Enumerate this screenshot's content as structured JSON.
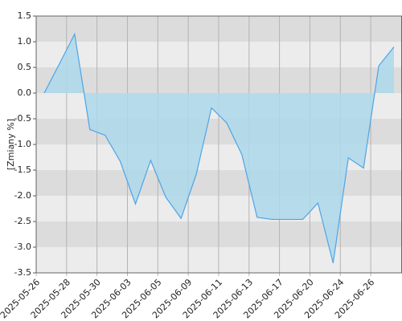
{
  "chart_data": {
    "type": "area",
    "y_label": "[Zmiany %]",
    "categories": [
      "2025-05-26",
      null,
      "2025-05-28",
      null,
      "2025-05-30",
      null,
      "2025-06-03",
      null,
      "2025-06-05",
      null,
      "2025-06-09",
      null,
      "2025-06-11",
      null,
      "2025-06-13",
      null,
      "2025-06-17",
      null,
      "2025-06-20",
      null,
      "2025-06-24",
      null,
      "2025-06-26",
      null
    ],
    "values": [
      0.0,
      0.57,
      1.15,
      -0.71,
      -0.82,
      -1.33,
      -2.16,
      -1.31,
      -2.03,
      -2.44,
      -1.58,
      -0.29,
      -0.58,
      -1.2,
      -2.42,
      -2.46,
      -2.46,
      -2.46,
      -2.14,
      -3.31,
      -1.26,
      -1.46,
      0.53,
      0.9
    ],
    "color": "#4ea4e6",
    "fill": "#add8eb",
    "ylim": [
      -3.5,
      1.5
    ],
    "yticks": [
      1.5,
      {
        "value": 1,
        "label": "1.0"
      },
      0.5,
      {
        "value": 0,
        "label": "0.0"
      },
      -0.5,
      {
        "value": -1,
        "label": "-1.0"
      },
      -1.5,
      {
        "value": -2,
        "label": "-2.0"
      },
      -2.5,
      {
        "value": -3,
        "label": "-3.0"
      },
      -3.5
    ],
    "bands": [
      "#dcdcdc",
      "#ececec"
    ],
    "grid": true
  }
}
